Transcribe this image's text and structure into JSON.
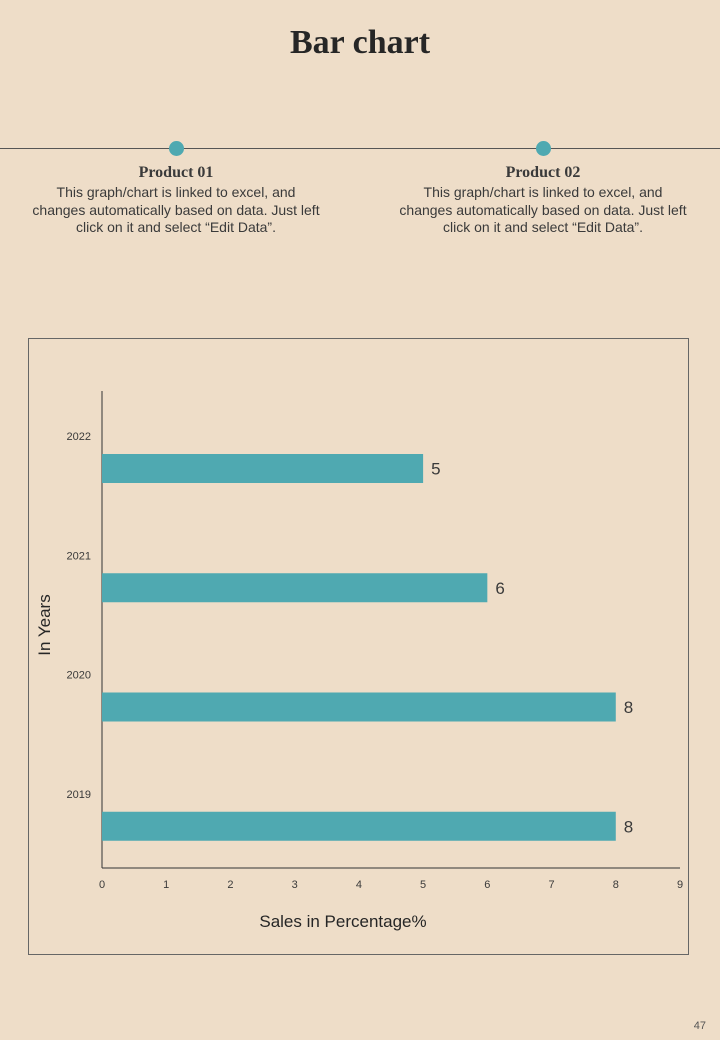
{
  "page": {
    "title": "Bar chart",
    "page_number": "47"
  },
  "products": [
    {
      "title": "Product 01",
      "description": "This graph/chart is linked to excel, and changes automatically based on data. Just left click on it and select “Edit Data”."
    },
    {
      "title": "Product 02",
      "description": "This graph/chart is linked to excel, and changes automatically based on data. Just left click on it and select “Edit Data”."
    }
  ],
  "colors": {
    "accent": "#4fa9b1",
    "background": "#eeddc8",
    "text": "#3a3a3a"
  },
  "chart_data": {
    "type": "bar",
    "orientation": "horizontal",
    "categories": [
      "2022",
      "2021",
      "2020",
      "2019"
    ],
    "values": [
      5,
      6,
      8,
      8
    ],
    "data_labels": [
      "5",
      "6",
      "8",
      "8"
    ],
    "xlabel": "Sales in Percentage%",
    "ylabel": "In Years",
    "xlim": [
      0,
      9
    ],
    "x_ticks": [
      0,
      1,
      2,
      3,
      4,
      5,
      6,
      7,
      8,
      9
    ],
    "grid": false,
    "legend": "none",
    "bar_color": "#4fa9b1"
  }
}
